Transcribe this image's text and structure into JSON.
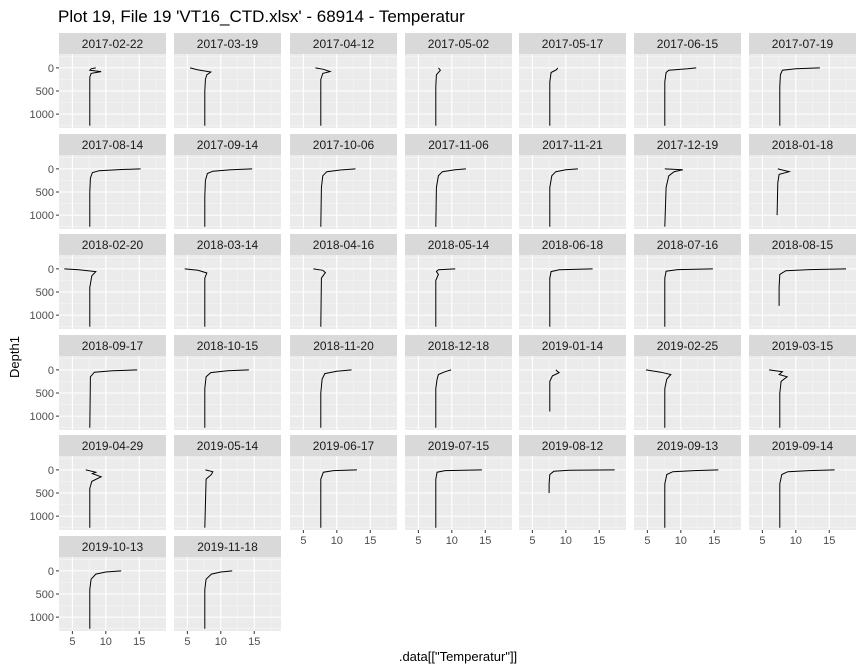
{
  "chart_data": {
    "type": "line",
    "title": "Plot 19, File 19 'VT16_CTD.xlsx' - 68914  -  Temperatur",
    "xlabel": ".data[[\"Temperatur\"]]",
    "ylabel": "Depth1",
    "xlim": [
      3,
      19
    ],
    "ylim": [
      1300,
      -300
    ],
    "y_reversed": true,
    "x_ticks": [
      5,
      10,
      15
    ],
    "y_ticks": [
      0,
      500,
      1000
    ],
    "grid": true,
    "facet_columns": 7,
    "panels": [
      {
        "label": "2017-02-22",
        "points": [
          [
            8.5,
            0
          ],
          [
            7.8,
            20
          ],
          [
            7.6,
            50
          ],
          [
            9.3,
            80
          ],
          [
            7.8,
            120
          ],
          [
            7.6,
            200
          ],
          [
            7.6,
            400
          ],
          [
            7.6,
            800
          ],
          [
            7.6,
            1250
          ]
        ]
      },
      {
        "label": "2017-03-19",
        "points": [
          [
            5.4,
            0
          ],
          [
            6.5,
            40
          ],
          [
            8.5,
            90
          ],
          [
            7.9,
            150
          ],
          [
            7.7,
            250
          ],
          [
            7.6,
            500
          ],
          [
            7.6,
            900
          ],
          [
            7.6,
            1250
          ]
        ]
      },
      {
        "label": "2017-04-12",
        "points": [
          [
            6.8,
            0
          ],
          [
            8.0,
            30
          ],
          [
            9.0,
            80
          ],
          [
            7.9,
            120
          ],
          [
            7.6,
            250
          ],
          [
            7.6,
            600
          ],
          [
            7.6,
            1250
          ]
        ]
      },
      {
        "label": "2017-05-02",
        "points": [
          [
            8.0,
            0
          ],
          [
            8.3,
            50
          ],
          [
            7.7,
            150
          ],
          [
            7.6,
            400
          ],
          [
            7.6,
            800
          ],
          [
            7.6,
            1250
          ]
        ]
      },
      {
        "label": "2017-05-17",
        "points": [
          [
            8.8,
            0
          ],
          [
            8.6,
            40
          ],
          [
            7.8,
            100
          ],
          [
            7.6,
            300
          ],
          [
            7.6,
            1250
          ]
        ]
      },
      {
        "label": "2017-06-15",
        "points": [
          [
            12.3,
            0
          ],
          [
            11.0,
            20
          ],
          [
            8.2,
            50
          ],
          [
            7.8,
            100
          ],
          [
            7.6,
            300
          ],
          [
            7.6,
            1250
          ]
        ]
      },
      {
        "label": "2017-07-19",
        "points": [
          [
            13.6,
            0
          ],
          [
            10.0,
            20
          ],
          [
            8.0,
            50
          ],
          [
            7.7,
            150
          ],
          [
            7.6,
            400
          ],
          [
            7.6,
            1250
          ]
        ]
      },
      {
        "label": "2017-08-14",
        "points": [
          [
            15.2,
            0
          ],
          [
            12.0,
            15
          ],
          [
            9.0,
            40
          ],
          [
            8.0,
            80
          ],
          [
            7.7,
            200
          ],
          [
            7.6,
            500
          ],
          [
            7.6,
            1250
          ]
        ]
      },
      {
        "label": "2017-09-14",
        "points": [
          [
            14.7,
            0
          ],
          [
            11.5,
            20
          ],
          [
            8.8,
            50
          ],
          [
            8.0,
            100
          ],
          [
            7.7,
            250
          ],
          [
            7.6,
            600
          ],
          [
            7.6,
            1250
          ]
        ]
      },
      {
        "label": "2017-10-06",
        "points": [
          [
            12.8,
            0
          ],
          [
            10.5,
            25
          ],
          [
            8.5,
            60
          ],
          [
            7.9,
            150
          ],
          [
            7.7,
            400
          ],
          [
            7.6,
            1250
          ]
        ]
      },
      {
        "label": "2017-11-06",
        "points": [
          [
            12.1,
            0
          ],
          [
            10.5,
            20
          ],
          [
            8.6,
            60
          ],
          [
            8.0,
            150
          ],
          [
            7.7,
            400
          ],
          [
            7.6,
            1250
          ]
        ]
      },
      {
        "label": "2017-11-21",
        "points": [
          [
            11.8,
            0
          ],
          [
            10.0,
            20
          ],
          [
            8.5,
            60
          ],
          [
            7.9,
            150
          ],
          [
            7.6,
            400
          ],
          [
            7.6,
            1250
          ]
        ]
      },
      {
        "label": "2017-12-19",
        "points": [
          [
            7.6,
            0
          ],
          [
            10.3,
            20
          ],
          [
            9.0,
            60
          ],
          [
            8.2,
            150
          ],
          [
            7.8,
            400
          ],
          [
            7.6,
            1250
          ]
        ]
      },
      {
        "label": "2018-01-18",
        "points": [
          [
            7.3,
            0
          ],
          [
            9.0,
            60
          ],
          [
            7.5,
            120
          ],
          [
            7.3,
            300
          ],
          [
            7.2,
            1000
          ]
        ]
      },
      {
        "label": "2018-02-20",
        "points": [
          [
            3.8,
            0
          ],
          [
            6.0,
            20
          ],
          [
            8.5,
            60
          ],
          [
            7.9,
            150
          ],
          [
            7.6,
            400
          ],
          [
            7.6,
            1250
          ]
        ]
      },
      {
        "label": "2018-03-14",
        "points": [
          [
            4.6,
            0
          ],
          [
            6.6,
            30
          ],
          [
            7.9,
            90
          ],
          [
            7.6,
            200
          ],
          [
            7.6,
            1250
          ]
        ]
      },
      {
        "label": "2018-04-16",
        "points": [
          [
            6.5,
            0
          ],
          [
            7.9,
            30
          ],
          [
            8.3,
            80
          ],
          [
            7.7,
            200
          ],
          [
            7.6,
            1250
          ]
        ]
      },
      {
        "label": "2018-05-14",
        "points": [
          [
            10.5,
            0
          ],
          [
            8.0,
            20
          ],
          [
            7.7,
            60
          ],
          [
            8.0,
            120
          ],
          [
            7.6,
            250
          ],
          [
            7.6,
            1250
          ]
        ]
      },
      {
        "label": "2018-06-18",
        "points": [
          [
            14.0,
            0
          ],
          [
            9.0,
            20
          ],
          [
            7.8,
            60
          ],
          [
            7.6,
            200
          ],
          [
            7.6,
            1250
          ]
        ]
      },
      {
        "label": "2018-07-16",
        "points": [
          [
            14.8,
            0
          ],
          [
            9.5,
            15
          ],
          [
            7.8,
            50
          ],
          [
            7.6,
            200
          ],
          [
            7.6,
            1250
          ]
        ]
      },
      {
        "label": "2018-08-15",
        "points": [
          [
            17.5,
            0
          ],
          [
            12.0,
            15
          ],
          [
            8.5,
            40
          ],
          [
            7.6,
            120
          ],
          [
            7.5,
            400
          ],
          [
            7.5,
            800
          ]
        ]
      },
      {
        "label": "2018-09-17",
        "points": [
          [
            14.7,
            0
          ],
          [
            11.0,
            20
          ],
          [
            8.3,
            50
          ],
          [
            7.7,
            150
          ],
          [
            7.6,
            1250
          ]
        ]
      },
      {
        "label": "2018-10-15",
        "points": [
          [
            14.2,
            0
          ],
          [
            11.0,
            20
          ],
          [
            8.5,
            60
          ],
          [
            7.8,
            150
          ],
          [
            7.6,
            400
          ],
          [
            7.6,
            1250
          ]
        ]
      },
      {
        "label": "2018-11-20",
        "points": [
          [
            12.2,
            0
          ],
          [
            10.0,
            30
          ],
          [
            8.2,
            80
          ],
          [
            7.8,
            200
          ],
          [
            7.6,
            500
          ],
          [
            7.6,
            1250
          ]
        ]
      },
      {
        "label": "2018-12-18",
        "points": [
          [
            9.9,
            0
          ],
          [
            9.0,
            40
          ],
          [
            8.0,
            100
          ],
          [
            7.8,
            200
          ],
          [
            7.6,
            400
          ],
          [
            7.6,
            1250
          ]
        ]
      },
      {
        "label": "2019-01-14",
        "points": [
          [
            8.5,
            0
          ],
          [
            9.0,
            60
          ],
          [
            8.0,
            130
          ],
          [
            7.6,
            250
          ],
          [
            7.6,
            900
          ]
        ]
      },
      {
        "label": "2019-02-25",
        "points": [
          [
            4.8,
            0
          ],
          [
            7.0,
            50
          ],
          [
            8.5,
            100
          ],
          [
            7.9,
            200
          ],
          [
            7.6,
            400
          ],
          [
            7.6,
            1250
          ]
        ]
      },
      {
        "label": "2019-03-15",
        "points": [
          [
            6.0,
            0
          ],
          [
            8.0,
            40
          ],
          [
            7.5,
            100
          ],
          [
            8.7,
            150
          ],
          [
            7.8,
            250
          ],
          [
            7.6,
            500
          ],
          [
            7.6,
            1250
          ]
        ]
      },
      {
        "label": "2019-04-29",
        "points": [
          [
            7.0,
            0
          ],
          [
            8.5,
            50
          ],
          [
            8.0,
            80
          ],
          [
            9.3,
            150
          ],
          [
            7.9,
            250
          ],
          [
            7.6,
            400
          ],
          [
            7.6,
            1250
          ]
        ]
      },
      {
        "label": "2019-05-14",
        "points": [
          [
            7.7,
            0
          ],
          [
            8.8,
            40
          ],
          [
            8.6,
            100
          ],
          [
            7.8,
            200
          ],
          [
            7.6,
            1250
          ]
        ]
      },
      {
        "label": "2019-06-17",
        "points": [
          [
            13.0,
            0
          ],
          [
            9.5,
            15
          ],
          [
            8.0,
            50
          ],
          [
            7.6,
            200
          ],
          [
            7.6,
            1250
          ]
        ]
      },
      {
        "label": "2019-07-15",
        "points": [
          [
            14.5,
            0
          ],
          [
            9.0,
            15
          ],
          [
            7.8,
            50
          ],
          [
            7.6,
            200
          ],
          [
            7.6,
            1250
          ]
        ]
      },
      {
        "label": "2019-08-12",
        "points": [
          [
            17.3,
            0
          ],
          [
            10.5,
            10
          ],
          [
            8.2,
            30
          ],
          [
            7.6,
            100
          ],
          [
            7.5,
            300
          ],
          [
            7.5,
            500
          ]
        ]
      },
      {
        "label": "2019-09-13",
        "points": [
          [
            15.6,
            0
          ],
          [
            12.0,
            15
          ],
          [
            8.8,
            40
          ],
          [
            7.9,
            100
          ],
          [
            7.6,
            300
          ],
          [
            7.6,
            1250
          ]
        ]
      },
      {
        "label": "2019-09-14",
        "points": [
          [
            15.8,
            0
          ],
          [
            12.0,
            15
          ],
          [
            8.8,
            40
          ],
          [
            7.9,
            100
          ],
          [
            7.6,
            300
          ],
          [
            7.6,
            1250
          ]
        ]
      },
      {
        "label": "2019-10-13",
        "points": [
          [
            12.3,
            0
          ],
          [
            10.0,
            25
          ],
          [
            8.5,
            70
          ],
          [
            7.8,
            180
          ],
          [
            7.6,
            400
          ],
          [
            7.6,
            1250
          ]
        ]
      },
      {
        "label": "2019-11-18",
        "points": [
          [
            11.7,
            0
          ],
          [
            10.0,
            25
          ],
          [
            8.6,
            70
          ],
          [
            7.8,
            180
          ],
          [
            7.6,
            400
          ],
          [
            7.6,
            1250
          ]
        ]
      }
    ]
  }
}
